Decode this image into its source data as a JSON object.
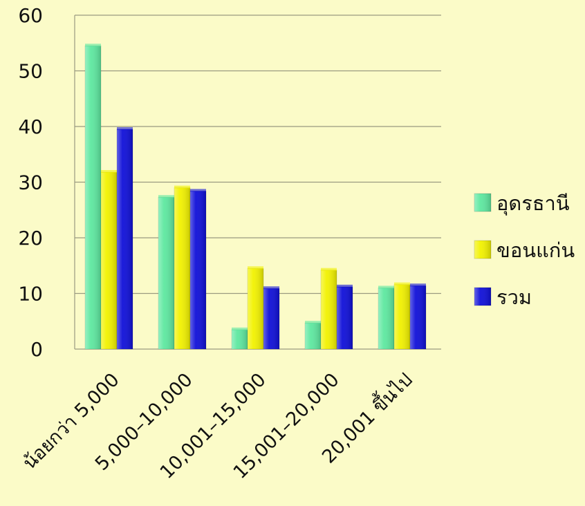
{
  "chart_data": {
    "type": "bar",
    "title": "",
    "xlabel": "",
    "ylabel": "",
    "categories": [
      "น้อยกว่า 5,000",
      "5,000–10,000",
      "10,001–15,000",
      "15,001–20,000",
      "20,001 ขึ้นไป"
    ],
    "series": [
      {
        "name": "อุดรธานี",
        "color": "#5ee8a0",
        "values": [
          54.5,
          27.3,
          3.5,
          4.7,
          11.0
        ]
      },
      {
        "name": "ขอนแก่น",
        "color": "#f2f200",
        "values": [
          31.8,
          29.0,
          14.5,
          14.2,
          11.6
        ]
      },
      {
        "name": "รวม",
        "color": "#1010d8",
        "values": [
          39.5,
          28.4,
          10.9,
          11.2,
          11.4
        ]
      }
    ],
    "ylim": [
      0,
      60
    ],
    "yticks": [
      0,
      10,
      20,
      30,
      40,
      50,
      60
    ],
    "grid": true,
    "legend_position": "right"
  }
}
